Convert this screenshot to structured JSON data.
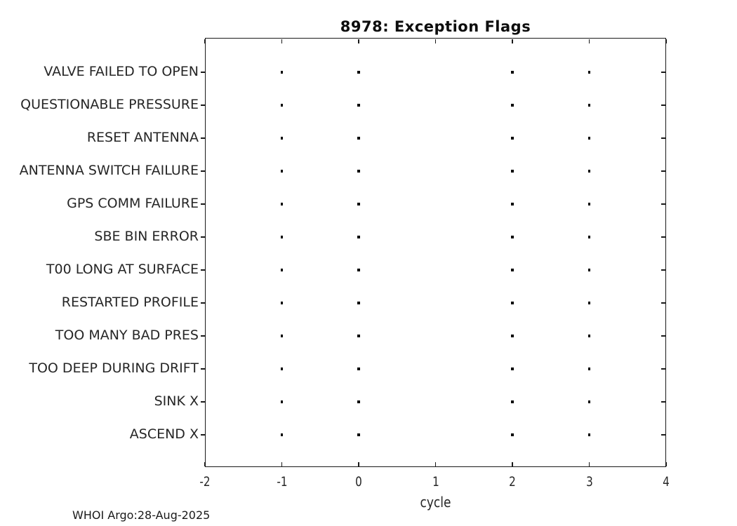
{
  "title": "8978: Exception Flags",
  "footer": "WHOI Argo:28-Aug-2025",
  "style": {
    "background": "#ffffff",
    "axis_color": "#1a1a1a",
    "label_color": "#262626",
    "marker_color": "#000000"
  },
  "chart_data": {
    "type": "scatter",
    "title": "8978: Exception Flags",
    "xlabel": "cycle",
    "ylabel": "",
    "xlim": [
      -2,
      4
    ],
    "xticks": [
      -2,
      -1,
      0,
      1,
      2,
      3,
      4
    ],
    "xtick_labels": [
      "-2",
      "-1",
      "0",
      "1",
      "2",
      "3",
      "4"
    ],
    "grid": false,
    "legend": null,
    "marker": {
      "shape": "point",
      "color": "#000000"
    },
    "categories": [
      "VALVE FAILED TO OPEN",
      "QUESTIONABLE PRESSURE",
      "RESET ANTENNA",
      "ANTENNA SWITCH FAILURE",
      "GPS COMM FAILURE",
      "SBE BIN ERROR",
      "T00 LONG AT SURFACE",
      "RESTARTED PROFILE",
      "TOO MANY BAD PRES",
      "TOO DEEP DURING DRIFT",
      "SINK X",
      "ASCEND X"
    ],
    "rows": [
      {
        "label": "VALVE FAILED TO OPEN",
        "x": [
          -1,
          0,
          2,
          3
        ]
      },
      {
        "label": "QUESTIONABLE PRESSURE",
        "x": [
          -1,
          0,
          2,
          3
        ]
      },
      {
        "label": "RESET ANTENNA",
        "x": [
          -1,
          0,
          2,
          3
        ]
      },
      {
        "label": "ANTENNA SWITCH FAILURE",
        "x": [
          -1,
          0,
          2,
          3
        ]
      },
      {
        "label": "GPS COMM FAILURE",
        "x": [
          -1,
          0,
          2,
          3
        ]
      },
      {
        "label": "SBE BIN ERROR",
        "x": [
          -1,
          0,
          2,
          3
        ]
      },
      {
        "label": "T00 LONG AT SURFACE",
        "x": [
          -1,
          0,
          2,
          3
        ]
      },
      {
        "label": "RESTARTED PROFILE",
        "x": [
          -1,
          0,
          2,
          3
        ]
      },
      {
        "label": "TOO MANY BAD PRES",
        "x": [
          -1,
          0,
          2,
          3
        ]
      },
      {
        "label": "TOO DEEP DURING DRIFT",
        "x": [
          -1,
          0,
          2,
          3
        ]
      },
      {
        "label": "SINK X",
        "x": [
          -1,
          0,
          2,
          3
        ]
      },
      {
        "label": "ASCEND X",
        "x": [
          -1,
          0,
          2,
          3
        ]
      }
    ]
  }
}
